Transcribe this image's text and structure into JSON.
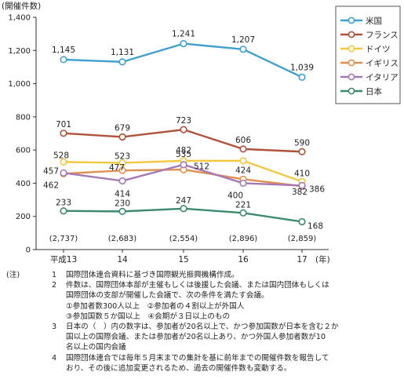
{
  "chart_data": {
    "type": "line",
    "ylabel": "(開催件数)",
    "xlabel": "(年)",
    "ylim": [
      0,
      1400
    ],
    "yticks": [
      0,
      200,
      400,
      600,
      800,
      1000,
      1200,
      1400
    ],
    "categories": [
      "平成13",
      "14",
      "15",
      "16",
      "17"
    ],
    "series": [
      {
        "name": "米国",
        "color": "#3fa0cf",
        "values": [
          1145,
          1131,
          1241,
          1207,
          1039
        ]
      },
      {
        "name": "フランス",
        "color": "#b0523a",
        "values": [
          701,
          679,
          723,
          606,
          590
        ]
      },
      {
        "name": "ドイツ",
        "color": "#f2c840",
        "values": [
          528,
          523,
          535,
          535,
          410
        ]
      },
      {
        "name": "イギリス",
        "color": "#e0904e",
        "values": [
          457,
          477,
          482,
          424,
          382
        ]
      },
      {
        "name": "イタリア",
        "color": "#a579b6",
        "values": [
          462,
          414,
          512,
          400,
          386
        ]
      },
      {
        "name": "日本",
        "color": "#3d8a6c",
        "values": [
          233,
          230,
          247,
          221,
          168
        ]
      }
    ],
    "data_labels": [
      [
        "1,145",
        "1,131",
        "1,241",
        "1,207",
        "1,039"
      ],
      [
        "701",
        "679",
        "723",
        "606",
        "590"
      ],
      [
        "528",
        "523",
        "535",
        "",
        "410"
      ],
      [
        "457",
        "477",
        "482",
        "424",
        "382"
      ],
      [
        "462",
        "414",
        "512",
        "400",
        "386"
      ],
      [
        "233",
        "230",
        "247",
        "221",
        "168"
      ]
    ],
    "parenthetical": [
      "(2,737)",
      "(2,683)",
      "(2,554)",
      "(2,896)",
      "(2,859)"
    ],
    "legend_position": "right",
    "grid": false
  },
  "notes": {
    "label": "(注)",
    "items": [
      {
        "num": "1",
        "lines": [
          "国際団体連合資料に基づき国際観光振興機構作成。"
        ]
      },
      {
        "num": "2",
        "lines": [
          "件数は、国際団体本部が主催もしくは後援した会議、または国内団体もしくは",
          "国際団体の支部が開催した会議で、次の条件を満たす会議。",
          "①参加者数300人以上　②参加者の４割以上が外国人",
          "③参加国数５か国以上　④会期が３日以上のもの"
        ]
      },
      {
        "num": "3",
        "lines": [
          "日本の（　）内の数字は、参加者が20名以上で、かつ参加国数が日本を含む２か",
          "国以上の国際会議、または参加者が20名以上あり、かつ外国人参加者数が10",
          "名以上の国内会議"
        ]
      },
      {
        "num": "4",
        "lines": [
          "国際団体連合では毎年５月末までの集計を基に前年までの開催件数を報告して",
          "おり、その後に追加変更されるため、過去の開催件数も変動する。"
        ]
      }
    ]
  }
}
